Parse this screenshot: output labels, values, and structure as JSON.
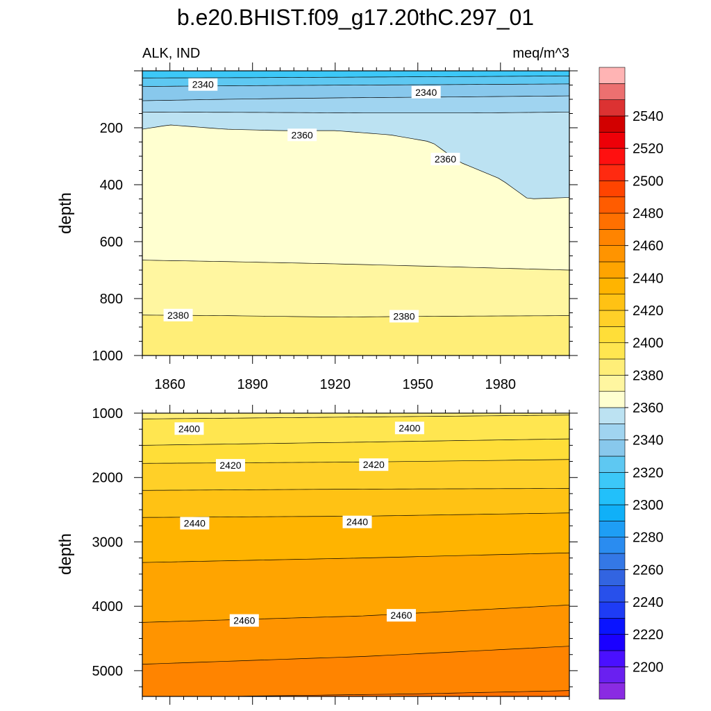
{
  "chart_data": {
    "type": "heatmap",
    "title": "b.e20.BHIST.f09_g17.20thC.297_01",
    "variable_label": "ALK, IND",
    "units_label": "meq/m^3",
    "panels": [
      {
        "name": "upper",
        "ylabel": "depth",
        "xlim": [
          1850,
          2005
        ],
        "ylim": [
          1000,
          0
        ],
        "xticks": [
          "1860",
          "1890",
          "1920",
          "1950",
          "1980"
        ],
        "yticks": [
          "200",
          "400",
          "600",
          "800",
          "1000"
        ],
        "contours": [
          {
            "value": 2320,
            "x": [
              1850,
              1890,
              1930,
              1970,
              2005
            ],
            "depth": [
              25,
              24,
              22,
              20,
              18
            ]
          },
          {
            "value": 2330,
            "x": [
              1850,
              1890,
              1930,
              1970,
              2005
            ],
            "depth": [
              55,
              52,
              50,
              48,
              46
            ]
          },
          {
            "value": 2340,
            "x": [
              1850,
              1880,
              1920,
              1960,
              2005
            ],
            "depth": [
              105,
              100,
              95,
              92,
              88
            ]
          },
          {
            "value": 2350,
            "x": [
              1850,
              1890,
              1930,
              1970,
              2005
            ],
            "depth": [
              145,
              146,
              148,
              148,
              145
            ]
          },
          {
            "value": 2360,
            "x": [
              1850,
              1860,
              1880,
              1900,
              1920,
              1940,
              1955,
              1965,
              1980,
              1990,
              2005
            ],
            "depth": [
              205,
              190,
              205,
              210,
              210,
              225,
              250,
              320,
              380,
              450,
              445
            ]
          },
          {
            "value": 2370,
            "x": [
              1850,
              1880,
              1920,
              1960,
              2005
            ],
            "depth": [
              665,
              670,
              678,
              688,
              700
            ]
          },
          {
            "value": 2380,
            "x": [
              1850,
              1880,
              1920,
              1960,
              2005
            ],
            "depth": [
              858,
              860,
              865,
              862,
              860
            ]
          }
        ],
        "contour_labels": [
          {
            "text": "2340",
            "x": 1872,
            "depth": 48
          },
          {
            "text": "2340",
            "x": 1953,
            "depth": 75
          },
          {
            "text": "2360",
            "x": 1908,
            "depth": 225
          },
          {
            "text": "2360",
            "x": 1960,
            "depth": 310
          },
          {
            "text": "2380",
            "x": 1863,
            "depth": 858
          },
          {
            "text": "2380",
            "x": 1945,
            "depth": 862
          }
        ]
      },
      {
        "name": "lower",
        "ylabel": "depth",
        "xlim": [
          1850,
          2005
        ],
        "ylim": [
          5400,
          1000
        ],
        "xticks": [],
        "yticks": [
          "1000",
          "2000",
          "3000",
          "4000",
          "5000"
        ],
        "contours": [
          {
            "value": 2390,
            "x": [
              1850,
              1930,
              2005
            ],
            "depth": [
              1090,
              1060,
              1030
            ]
          },
          {
            "value": 2400,
            "x": [
              1850,
              1930,
              2005
            ],
            "depth": [
              1500,
              1450,
              1400
            ]
          },
          {
            "value": 2410,
            "x": [
              1850,
              1930,
              2005
            ],
            "depth": [
              1780,
              1760,
              1720
            ]
          },
          {
            "value": 2420,
            "x": [
              1850,
              1930,
              2005
            ],
            "depth": [
              2200,
              2180,
              2170
            ]
          },
          {
            "value": 2430,
            "x": [
              1850,
              1930,
              2005
            ],
            "depth": [
              2620,
              2600,
              2550
            ]
          },
          {
            "value": 2440,
            "x": [
              1850,
              1930,
              2005
            ],
            "depth": [
              3320,
              3250,
              3170
            ]
          },
          {
            "value": 2450,
            "x": [
              1850,
              1930,
              2005
            ],
            "depth": [
              4250,
              4150,
              3980
            ]
          },
          {
            "value": 2460,
            "x": [
              1850,
              1930,
              2005
            ],
            "depth": [
              4900,
              4780,
              4620
            ]
          },
          {
            "value": 2470,
            "x": [
              1880,
              1950,
              2005
            ],
            "depth": [
              5400,
              5360,
              5310
            ]
          }
        ],
        "contour_labels": [
          {
            "text": "2400",
            "x": 1867,
            "depth": 1240
          },
          {
            "text": "2400",
            "x": 1947,
            "depth": 1230
          },
          {
            "text": "2420",
            "x": 1882,
            "depth": 1810
          },
          {
            "text": "2420",
            "x": 1934,
            "depth": 1800
          },
          {
            "text": "2440",
            "x": 1869,
            "depth": 2710
          },
          {
            "text": "2440",
            "x": 1928,
            "depth": 2690
          },
          {
            "text": "2460",
            "x": 1887,
            "depth": 4220
          },
          {
            "text": "2460",
            "x": 1944,
            "depth": 4140
          }
        ]
      }
    ],
    "colorbar": {
      "levels": [
        2190,
        2200,
        2210,
        2220,
        2230,
        2240,
        2250,
        2260,
        2270,
        2280,
        2290,
        2300,
        2310,
        2320,
        2330,
        2340,
        2350,
        2360,
        2370,
        2380,
        2390,
        2400,
        2410,
        2420,
        2430,
        2440,
        2450,
        2460,
        2470,
        2480,
        2490,
        2500,
        2510,
        2520,
        2530,
        2540,
        2550,
        2560
      ],
      "colors": [
        "#8a2be2",
        "#6a20f0",
        "#4a10ff",
        "#1a00ff",
        "#0a14ff",
        "#1e3cf5",
        "#2850eb",
        "#3264e1",
        "#3478e6",
        "#2a8cf0",
        "#1e9ef5",
        "#10b0f8",
        "#22c0fa",
        "#3cc8f8",
        "#5ec8f2",
        "#88c8ec",
        "#a0d4f0",
        "#bce2f2",
        "#ffffd0",
        "#fff6a0",
        "#ffee78",
        "#ffe650",
        "#ffde38",
        "#ffd028",
        "#ffc214",
        "#ffb400",
        "#ffa400",
        "#ff9400",
        "#ff8400",
        "#ff7000",
        "#ff5c00",
        "#ff4400",
        "#ff2a10",
        "#ff1010",
        "#ee0008",
        "#d20000",
        "#dc3232",
        "#ec7070",
        "#ffb4b4"
      ],
      "tick_labels": [
        "2200",
        "2220",
        "2240",
        "2260",
        "2280",
        "2300",
        "2320",
        "2340",
        "2360",
        "2380",
        "2400",
        "2420",
        "2440",
        "2460",
        "2480",
        "2500",
        "2520",
        "2540"
      ]
    }
  }
}
